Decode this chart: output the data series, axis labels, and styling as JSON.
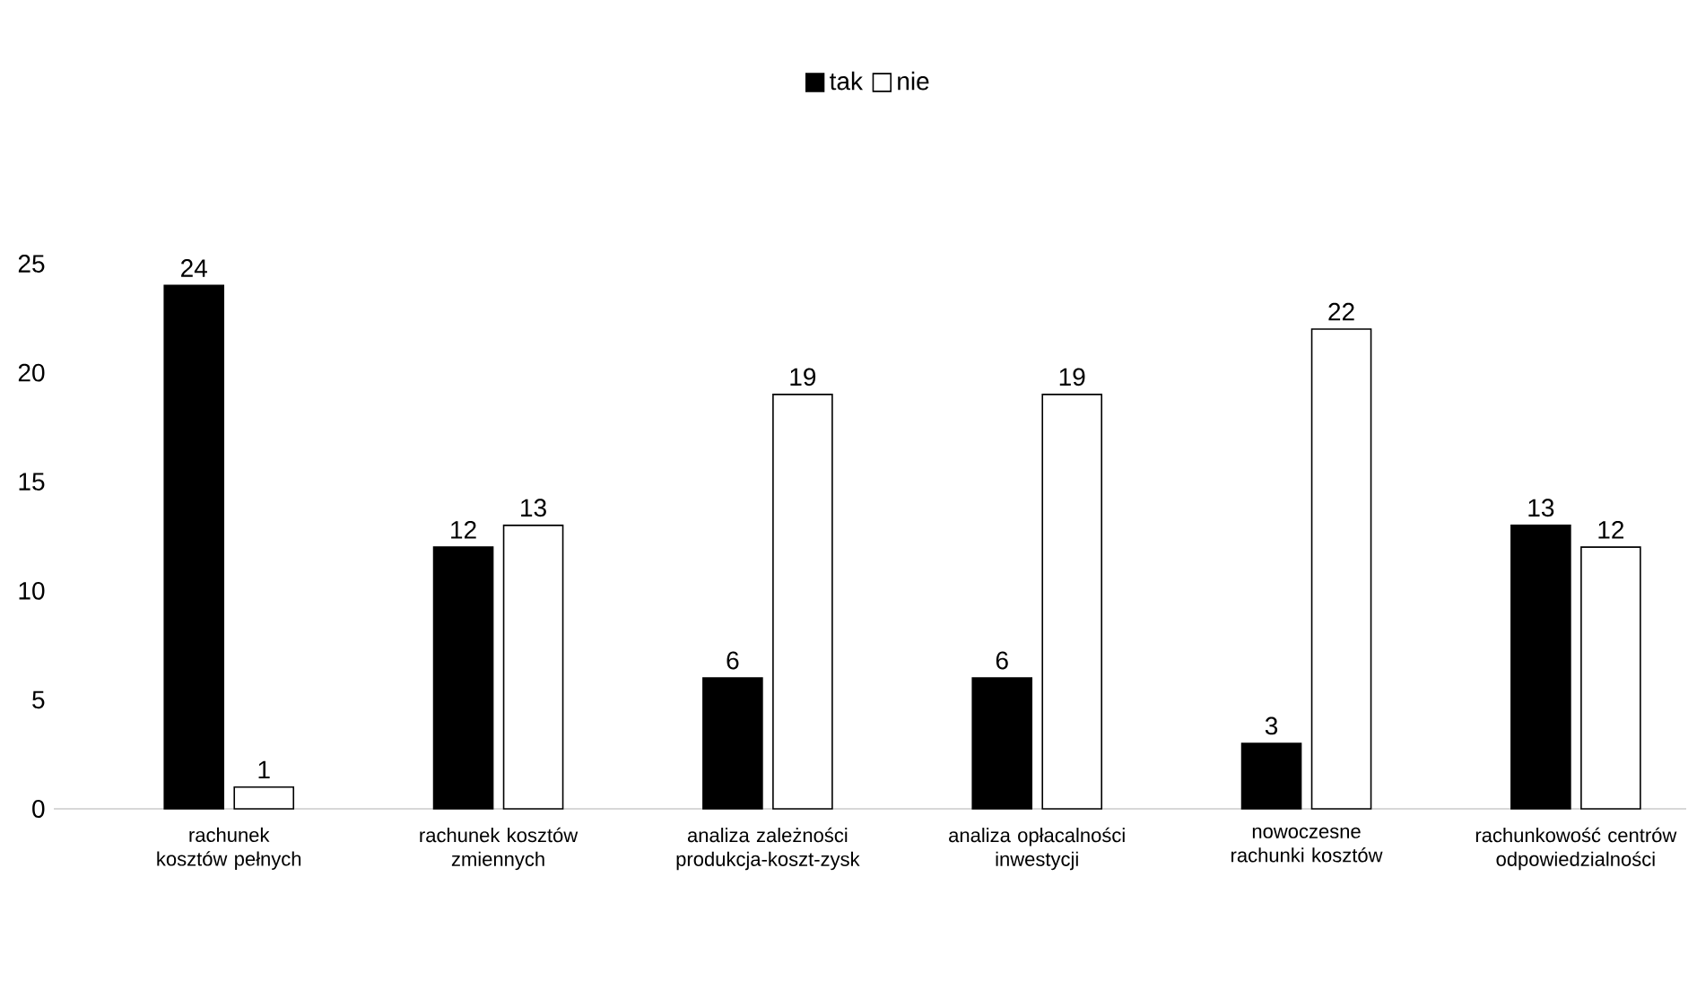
{
  "chart_data": {
    "type": "bar",
    "categories": [
      "rachunek kosztów pełnych",
      "rachunek kosztów zmiennych",
      "analiza zależności produkcja-koszt-zysk",
      "analiza opłacalności inwestycji",
      "nowoczesne rachunki kosztów",
      "rachunkowość centrów odpowiedzialności"
    ],
    "series": [
      {
        "name": "tak",
        "color": "#000000",
        "values": [
          24,
          12,
          6,
          6,
          3,
          13
        ]
      },
      {
        "name": "nie",
        "color": "#ffffff",
        "values": [
          1,
          13,
          19,
          19,
          22,
          12
        ]
      }
    ],
    "ylim": [
      0,
      25
    ],
    "yticks": [
      0,
      5,
      10,
      15,
      20,
      25
    ],
    "legend": "top",
    "data_labels": true
  }
}
